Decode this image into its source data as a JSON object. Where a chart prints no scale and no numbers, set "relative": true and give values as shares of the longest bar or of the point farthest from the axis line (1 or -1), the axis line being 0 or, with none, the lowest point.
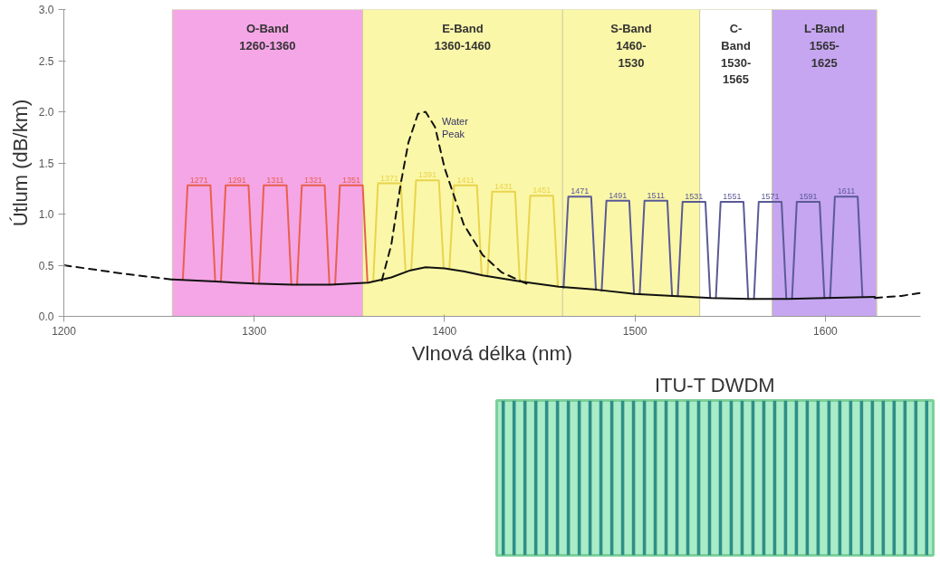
{
  "chart_data": [
    {
      "type": "line",
      "xlabel": "Vlnová délka (nm)",
      "ylabel": "Útlum (dB/km)",
      "xlim": [
        1200,
        1650
      ],
      "ylim": [
        0,
        3.0
      ],
      "xticks": [
        1200,
        1300,
        1400,
        1500,
        1600
      ],
      "yticks": [
        {
          "value": 0,
          "label": "0.0"
        },
        {
          "value": 0.5,
          "label": "0.5"
        },
        {
          "value": 1,
          "label": "1.0"
        },
        {
          "value": 1.5,
          "label": "1.5"
        },
        {
          "value": 2,
          "label": "2.0"
        },
        {
          "value": 2.5,
          "label": "2.5"
        },
        {
          "value": 3,
          "label": "3.0"
        }
      ],
      "grid": false,
      "bands": [
        {
          "axis": "x",
          "from": 1257,
          "to": 1357,
          "label": "O-Band\n1260-1360",
          "color": "#f5a6e6"
        },
        {
          "axis": "x",
          "from": 1357,
          "to": 1462,
          "label": "E-Band\n1360-1460",
          "color": "#fbf7a8"
        },
        {
          "axis": "x",
          "from": 1462,
          "to": 1534,
          "label": "S-Band\n1460-\n1530",
          "color": "#fbf7a8"
        },
        {
          "axis": "x",
          "from": 1534,
          "to": 1572,
          "label": "C-\nBand\n1530-\n1565",
          "color": "#ffffff"
        },
        {
          "axis": "x",
          "from": 1572,
          "to": 1627,
          "label": "L-Band\n1565-\n1625",
          "color": "#c6a6f0"
        }
      ],
      "series": [
        {
          "name": "1271",
          "color": "#e8604c",
          "line_style": "solid",
          "x": [
            1262.5,
            1265,
            1277,
            1279.5
          ],
          "values": [
            0.36,
            1.28,
            1.28,
            0.35
          ]
        },
        {
          "name": "1291",
          "color": "#e8604c",
          "line_style": "solid",
          "x": [
            1282.5,
            1285,
            1297,
            1299.5
          ],
          "values": [
            0.34,
            1.28,
            1.28,
            0.33
          ]
        },
        {
          "name": "1311",
          "color": "#e8604c",
          "line_style": "solid",
          "x": [
            1302.5,
            1305,
            1317,
            1319.5
          ],
          "values": [
            0.32,
            1.28,
            1.28,
            0.32
          ]
        },
        {
          "name": "1321",
          "color": "#e8604c",
          "line_style": "solid",
          "x": [
            1322.5,
            1325,
            1337,
            1339.5
          ],
          "values": [
            0.31,
            1.28,
            1.28,
            0.31
          ]
        },
        {
          "name": "1351",
          "color": "#e8604c",
          "line_style": "solid",
          "x": [
            1342.5,
            1345,
            1357,
            1359.5
          ],
          "values": [
            0.31,
            1.28,
            1.28,
            0.33
          ]
        },
        {
          "name": "1371",
          "color": "#e8d44c",
          "line_style": "solid",
          "x": [
            1362.5,
            1365,
            1377,
            1379.5
          ],
          "values": [
            0.34,
            1.3,
            1.3,
            0.44
          ]
        },
        {
          "name": "1391",
          "color": "#e8d44c",
          "line_style": "solid",
          "x": [
            1382.5,
            1385,
            1397,
            1399.5
          ],
          "values": [
            0.46,
            1.33,
            1.33,
            0.47
          ]
        },
        {
          "name": "1411",
          "color": "#e8d44c",
          "line_style": "solid",
          "x": [
            1402.5,
            1405,
            1417,
            1419.5
          ],
          "values": [
            0.46,
            1.28,
            1.28,
            0.4
          ]
        },
        {
          "name": "1431",
          "color": "#e8d44c",
          "line_style": "solid",
          "x": [
            1422.5,
            1425,
            1437,
            1439.5
          ],
          "values": [
            0.39,
            1.22,
            1.22,
            0.34
          ]
        },
        {
          "name": "1451",
          "color": "#e8d44c",
          "line_style": "solid",
          "x": [
            1442.5,
            1445,
            1457,
            1459.5
          ],
          "values": [
            0.33,
            1.18,
            1.18,
            0.29
          ]
        },
        {
          "name": "1471",
          "color": "#5a5a96",
          "line_style": "solid",
          "x": [
            1462.5,
            1465,
            1477,
            1479.5
          ],
          "values": [
            0.28,
            1.17,
            1.17,
            0.26
          ]
        },
        {
          "name": "1491",
          "color": "#5a5a96",
          "line_style": "solid",
          "x": [
            1482.5,
            1485,
            1497,
            1499.5
          ],
          "values": [
            0.25,
            1.13,
            1.13,
            0.22
          ]
        },
        {
          "name": "1511",
          "color": "#5a5a96",
          "line_style": "solid",
          "x": [
            1502.5,
            1505,
            1517,
            1519.5
          ],
          "values": [
            0.22,
            1.13,
            1.13,
            0.2
          ]
        },
        {
          "name": "1531",
          "color": "#5a5a96",
          "line_style": "solid",
          "x": [
            1522.5,
            1525,
            1537,
            1539.5
          ],
          "values": [
            0.2,
            1.12,
            1.12,
            0.18
          ]
        },
        {
          "name": "1551",
          "color": "#5a5a96",
          "line_style": "solid",
          "x": [
            1542.5,
            1545,
            1557,
            1559.5
          ],
          "values": [
            0.18,
            1.12,
            1.12,
            0.17
          ]
        },
        {
          "name": "1571",
          "color": "#5a5a96",
          "line_style": "solid",
          "x": [
            1562.5,
            1565,
            1577,
            1579.5
          ],
          "values": [
            0.17,
            1.12,
            1.12,
            0.17
          ]
        },
        {
          "name": "1591",
          "color": "#5a5a96",
          "line_style": "solid",
          "x": [
            1582.5,
            1585,
            1597,
            1599.5
          ],
          "values": [
            0.17,
            1.12,
            1.12,
            0.18
          ]
        },
        {
          "name": "1611",
          "color": "#5a5a96",
          "line_style": "solid",
          "x": [
            1602.5,
            1605,
            1617,
            1619.5
          ],
          "values": [
            0.18,
            1.17,
            1.17,
            0.19
          ]
        },
        {
          "color": "#111111",
          "line_style": "dashed",
          "x": [
            1200,
            1230,
            1257
          ],
          "values": [
            0.5,
            0.42,
            0.36
          ]
        },
        {
          "color": "#111111",
          "line_style": "dashed",
          "x": [
            1626,
            1640,
            1650
          ],
          "values": [
            0.18,
            0.2,
            0.23
          ]
        },
        {
          "name": "Water\nPeak",
          "color": "#111111",
          "line_style": "dashed",
          "x": [
            1367,
            1372,
            1377,
            1381,
            1386,
            1390,
            1395,
            1400,
            1410,
            1420,
            1430,
            1443
          ],
          "values": [
            0.35,
            0.7,
            1.3,
            1.7,
            1.98,
            2.0,
            1.85,
            1.45,
            0.9,
            0.6,
            0.43,
            0.32
          ]
        },
        {
          "color": "#111111",
          "line_style": "solid",
          "x": [
            1257,
            1280,
            1300,
            1320,
            1340,
            1360,
            1372,
            1382,
            1390,
            1400,
            1410,
            1420,
            1440,
            1460,
            1480,
            1500,
            1520,
            1540,
            1560,
            1580,
            1600,
            1626
          ],
          "values": [
            0.36,
            0.34,
            0.32,
            0.31,
            0.31,
            0.33,
            0.38,
            0.45,
            0.48,
            0.47,
            0.44,
            0.4,
            0.34,
            0.29,
            0.26,
            0.22,
            0.2,
            0.18,
            0.17,
            0.17,
            0.18,
            0.19
          ]
        }
      ]
    },
    {
      "type": "bar",
      "title": "ITU-T DWDM",
      "relative": true,
      "color": "#2f8f86",
      "categories": [
        null,
        null,
        null,
        null,
        null,
        null,
        null,
        null,
        null,
        null,
        null,
        null,
        null,
        null,
        null,
        null,
        null,
        null,
        null,
        null,
        null,
        null,
        null,
        null,
        null,
        null,
        null,
        null,
        null,
        null,
        null,
        null,
        null,
        null,
        null,
        null,
        null,
        null,
        null,
        null
      ],
      "values": [
        1,
        1,
        1,
        1,
        1,
        1,
        1,
        1,
        1,
        1,
        1,
        1,
        1,
        1,
        1,
        1,
        1,
        1,
        1,
        1,
        1,
        1,
        1,
        1,
        1,
        1,
        1,
        1,
        1,
        1,
        1,
        1,
        1,
        1,
        1,
        1,
        1,
        1,
        1,
        1
      ]
    }
  ]
}
